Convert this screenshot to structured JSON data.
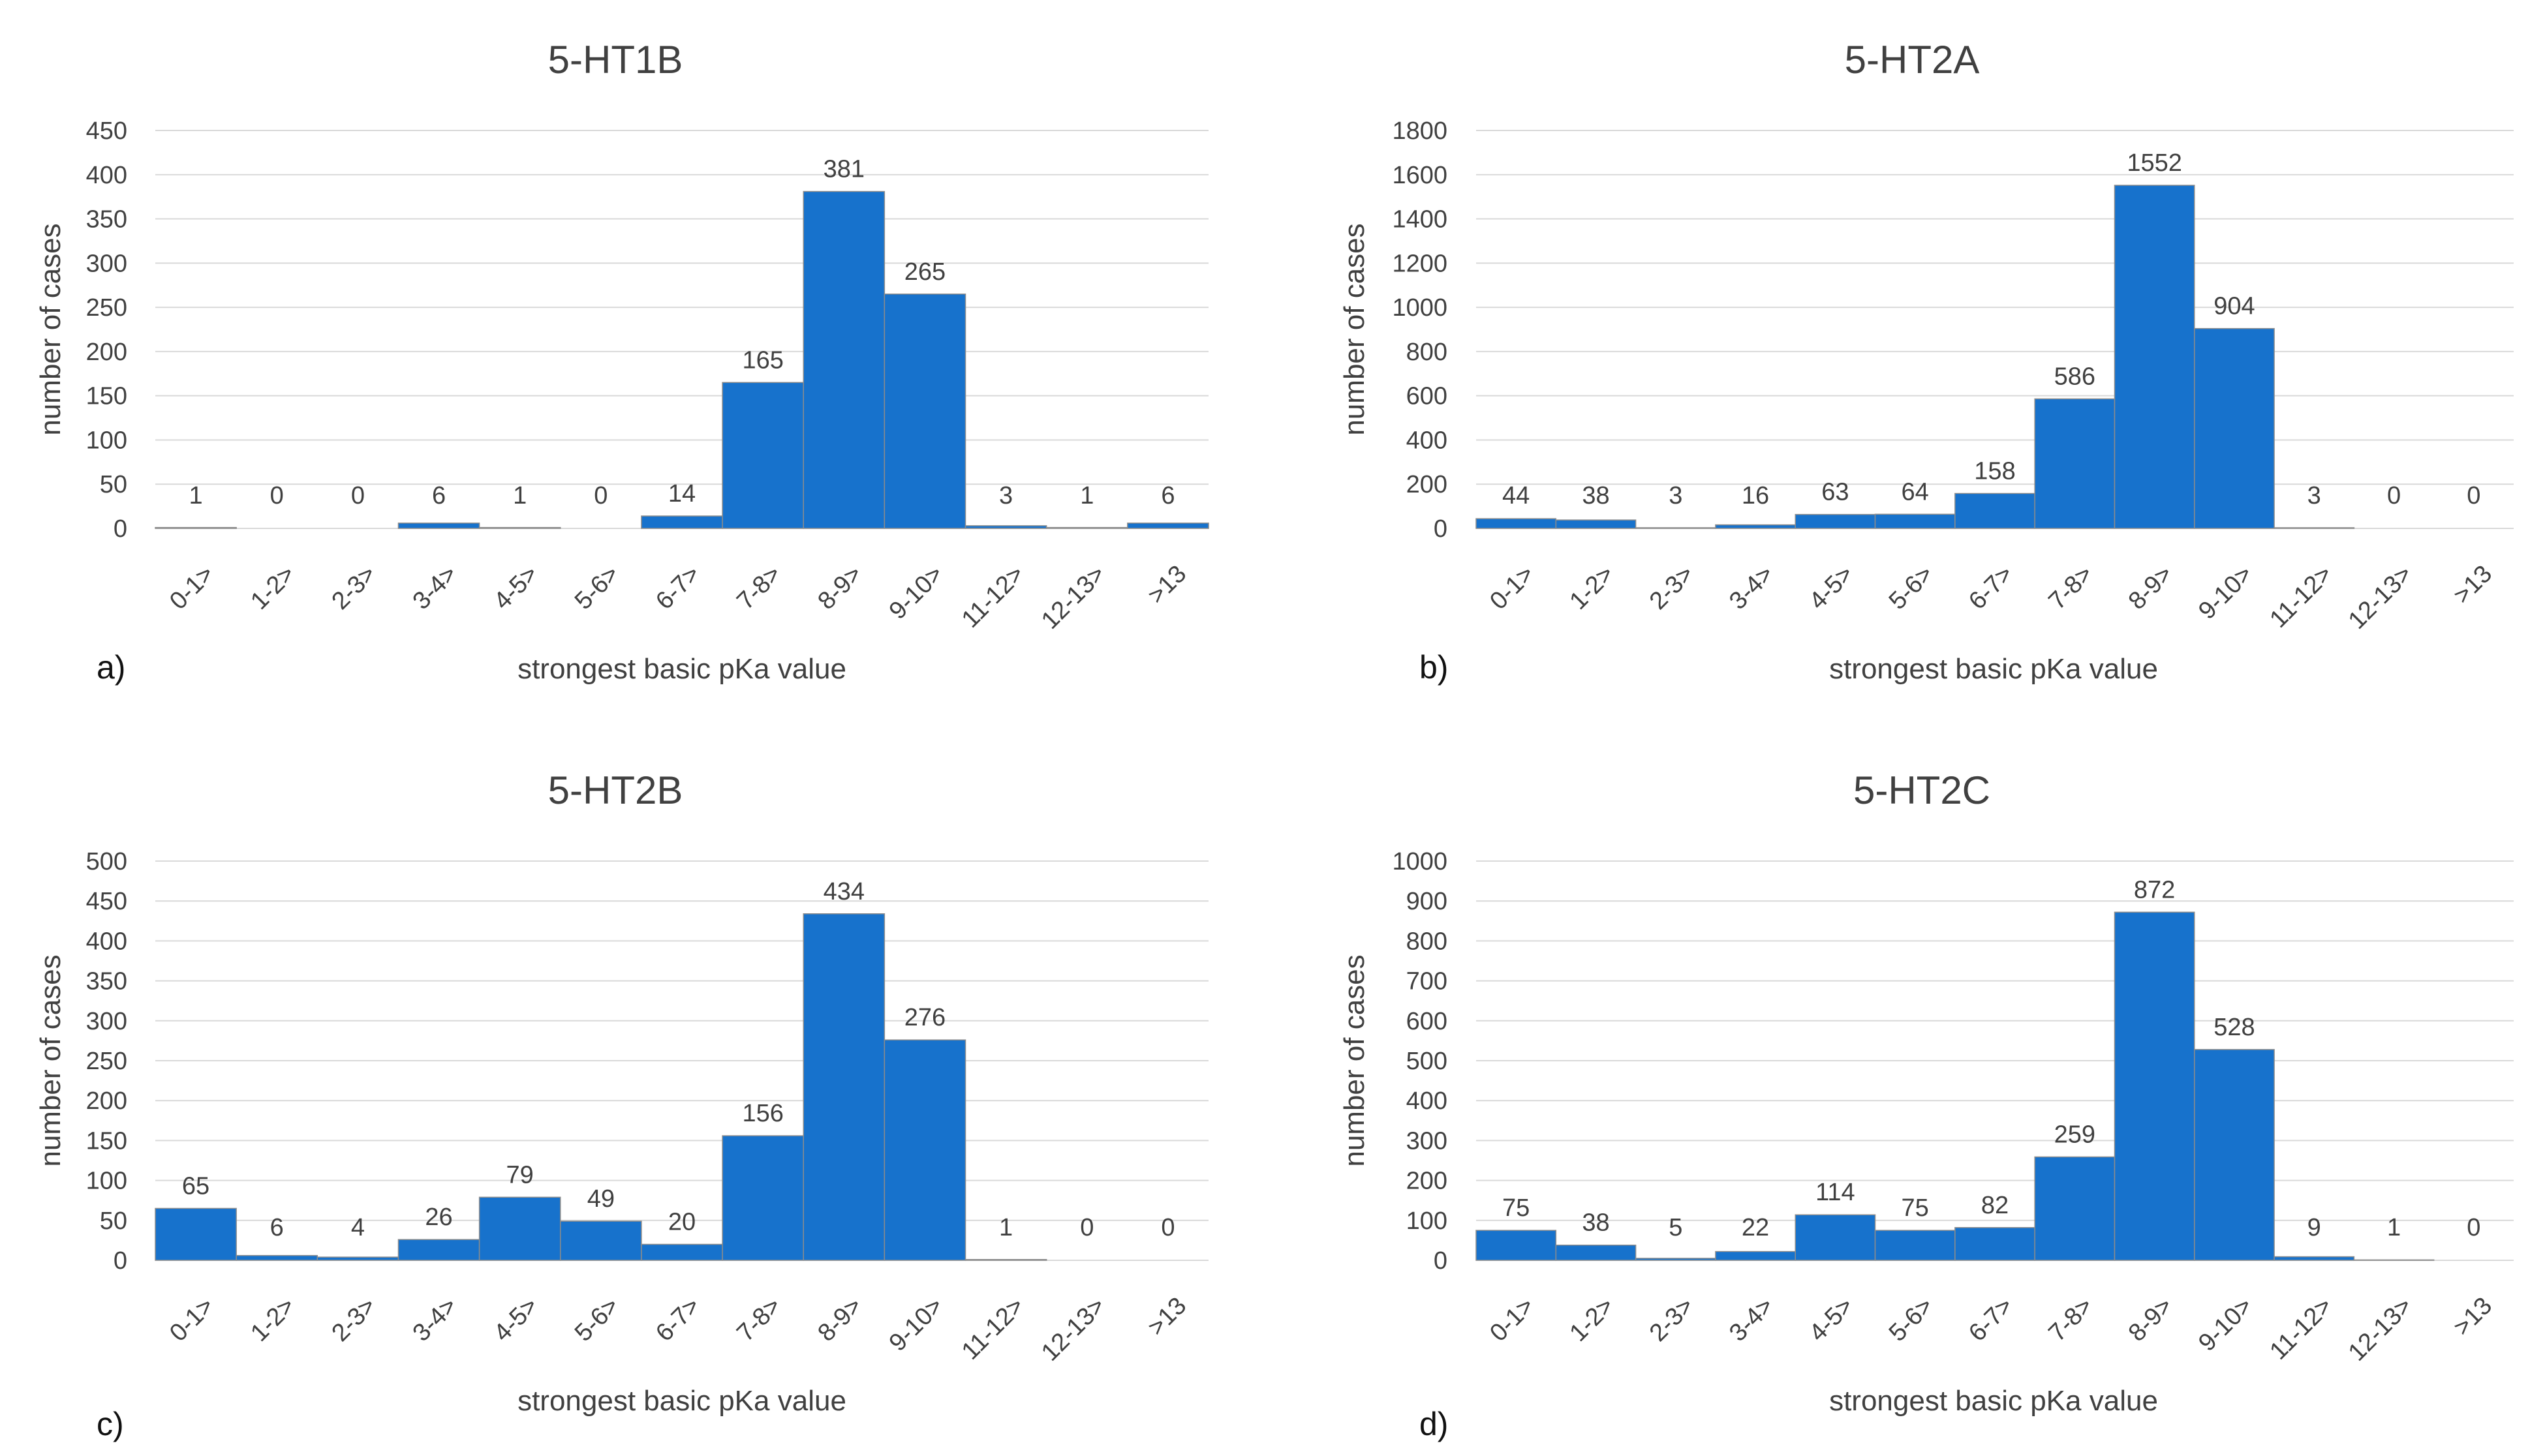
{
  "chart_data": [
    {
      "type": "bar",
      "panel": "a)",
      "title": "5-HT1B",
      "xlabel": "strongest basic pKa value",
      "ylabel": "number of cases",
      "categories": [
        "0-1>",
        "1-2>",
        "2-3>",
        "3-4>",
        "4-5>",
        "5-6>",
        "6-7>",
        "7-8>",
        "8-9>",
        "9-10>",
        "11-12>",
        "12-13>",
        ">13"
      ],
      "values": [
        1,
        0,
        0,
        6,
        1,
        0,
        14,
        165,
        381,
        265,
        3,
        1,
        6
      ],
      "ylim": [
        0,
        450
      ],
      "yticks": [
        0,
        50,
        100,
        150,
        200,
        250,
        300,
        350,
        400,
        450
      ],
      "grid": true,
      "legend": "none",
      "bar_color": "#1772CC"
    },
    {
      "type": "bar",
      "panel": "b)",
      "title": "5-HT2A",
      "xlabel": "strongest basic pKa value",
      "ylabel": "number of cases",
      "categories": [
        "0-1>",
        "1-2>",
        "2-3>",
        "3-4>",
        "4-5>",
        "5-6>",
        "6-7>",
        "7-8>",
        "8-9>",
        "9-10>",
        "11-12>",
        "12-13>",
        ">13"
      ],
      "values": [
        44,
        38,
        3,
        16,
        63,
        64,
        158,
        586,
        1552,
        904,
        3,
        0,
        0
      ],
      "ylim": [
        0,
        1800
      ],
      "yticks": [
        0,
        200,
        400,
        600,
        800,
        1000,
        1200,
        1400,
        1600,
        1800
      ],
      "grid": true,
      "legend": "none",
      "bar_color": "#1772CC"
    },
    {
      "type": "bar",
      "panel": "c)",
      "title": "5-HT2B",
      "xlabel": "strongest basic pKa value",
      "ylabel": "number of cases",
      "categories": [
        "0-1>",
        "1-2>",
        "2-3>",
        "3-4>",
        "4-5>",
        "5-6>",
        "6-7>",
        "7-8>",
        "8-9>",
        "9-10>",
        "11-12>",
        "12-13>",
        ">13"
      ],
      "values": [
        65,
        6,
        4,
        26,
        79,
        49,
        20,
        156,
        434,
        276,
        1,
        0,
        0
      ],
      "ylim": [
        0,
        500
      ],
      "yticks": [
        0,
        50,
        100,
        150,
        200,
        250,
        300,
        350,
        400,
        450,
        500
      ],
      "grid": true,
      "legend": "none",
      "bar_color": "#1772CC"
    },
    {
      "type": "bar",
      "panel": "d)",
      "title": "5-HT2C",
      "xlabel": "strongest basic pKa value",
      "ylabel": "number of cases",
      "categories": [
        "0-1>",
        "1-2>",
        "2-3>",
        "3-4>",
        "4-5>",
        "5-6>",
        "6-7>",
        "7-8>",
        "8-9>",
        "9-10>",
        "11-12>",
        "12-13>",
        ">13"
      ],
      "values": [
        75,
        38,
        5,
        22,
        114,
        75,
        82,
        259,
        872,
        528,
        9,
        1,
        0
      ],
      "ylim": [
        0,
        1000
      ],
      "yticks": [
        0,
        100,
        200,
        300,
        400,
        500,
        600,
        700,
        800,
        900,
        1000
      ],
      "grid": true,
      "legend": "none",
      "bar_color": "#1772CC"
    }
  ]
}
